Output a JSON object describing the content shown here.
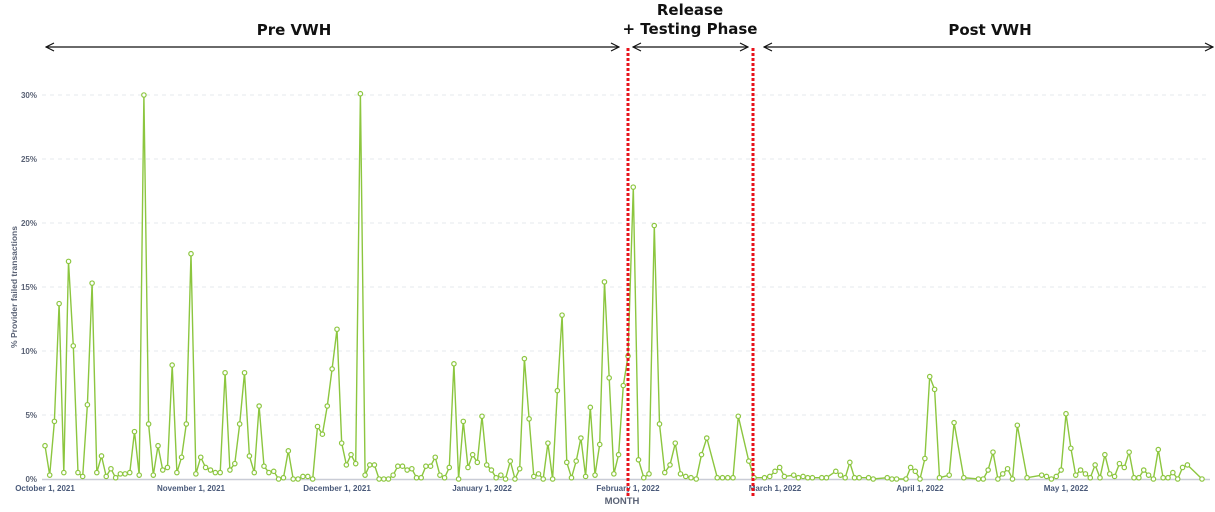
{
  "annotations": {
    "pre": "Pre VWH",
    "release_line1": "Release",
    "release_line2": "+ Testing Phase",
    "post": "Post VWH"
  },
  "chart_data": {
    "type": "line",
    "title": "",
    "xlabel": "MONTH",
    "ylabel": "% Provider failed transactions",
    "ylim": [
      0,
      30
    ],
    "yticks": [
      "0%",
      "5%",
      "10%",
      "15%",
      "20%",
      "25%",
      "30%"
    ],
    "xticks": [
      {
        "date": "2021-10-01",
        "label": "October 1, 2021"
      },
      {
        "date": "2021-11-01",
        "label": "November 1, 2021"
      },
      {
        "date": "2021-12-01",
        "label": "December 1, 2021"
      },
      {
        "date": "2022-01-01",
        "label": "January 1, 2022"
      },
      {
        "date": "2022-02-01",
        "label": "February 1, 2022"
      },
      {
        "date": "2022-03-01",
        "label": "March 1, 2022"
      },
      {
        "date": "2022-04-01",
        "label": "April 1, 2022"
      },
      {
        "date": "2022-05-01",
        "label": "May 1, 2022"
      }
    ],
    "grid": true,
    "line_color": "#8cc63f",
    "phase_line_color": "#e8121b",
    "phase_boundaries": [
      "2022-02-01",
      "2022-02-28"
    ],
    "points": [
      [
        "2021-10-01",
        2.6
      ],
      [
        "2021-10-02",
        0.3
      ],
      [
        "2021-10-03",
        4.5
      ],
      [
        "2021-10-04",
        13.7
      ],
      [
        "2021-10-05",
        0.5
      ],
      [
        "2021-10-06",
        17.0
      ],
      [
        "2021-10-07",
        10.4
      ],
      [
        "2021-10-08",
        0.5
      ],
      [
        "2021-10-09",
        0.2
      ],
      [
        "2021-10-10",
        5.8
      ],
      [
        "2021-10-11",
        15.3
      ],
      [
        "2021-10-12",
        0.5
      ],
      [
        "2021-10-13",
        1.8
      ],
      [
        "2021-10-14",
        0.2
      ],
      [
        "2021-10-15",
        0.8
      ],
      [
        "2021-10-16",
        0.1
      ],
      [
        "2021-10-17",
        0.4
      ],
      [
        "2021-10-18",
        0.4
      ],
      [
        "2021-10-19",
        0.5
      ],
      [
        "2021-10-20",
        3.7
      ],
      [
        "2021-10-21",
        0.3
      ],
      [
        "2021-10-22",
        30.0
      ],
      [
        "2021-10-23",
        4.3
      ],
      [
        "2021-10-24",
        0.3
      ],
      [
        "2021-10-25",
        2.6
      ],
      [
        "2021-10-26",
        0.7
      ],
      [
        "2021-10-27",
        0.9
      ],
      [
        "2021-10-28",
        8.9
      ],
      [
        "2021-10-29",
        0.5
      ],
      [
        "2021-10-30",
        1.7
      ],
      [
        "2021-10-31",
        4.3
      ],
      [
        "2021-11-01",
        17.6
      ],
      [
        "2021-11-02",
        0.4
      ],
      [
        "2021-11-03",
        1.7
      ],
      [
        "2021-11-04",
        0.9
      ],
      [
        "2021-11-05",
        0.7
      ],
      [
        "2021-11-06",
        0.5
      ],
      [
        "2021-11-07",
        0.5
      ],
      [
        "2021-11-08",
        8.3
      ],
      [
        "2021-11-09",
        0.7
      ],
      [
        "2021-11-10",
        1.2
      ],
      [
        "2021-11-11",
        4.3
      ],
      [
        "2021-11-12",
        8.3
      ],
      [
        "2021-11-13",
        1.8
      ],
      [
        "2021-11-14",
        0.5
      ],
      [
        "2021-11-15",
        5.7
      ],
      [
        "2021-11-16",
        1.0
      ],
      [
        "2021-11-17",
        0.5
      ],
      [
        "2021-11-18",
        0.6
      ],
      [
        "2021-11-19",
        0.0
      ],
      [
        "2021-11-20",
        0.1
      ],
      [
        "2021-11-21",
        2.2
      ],
      [
        "2021-11-22",
        0.0
      ],
      [
        "2021-11-23",
        0.0
      ],
      [
        "2021-11-24",
        0.2
      ],
      [
        "2021-11-25",
        0.2
      ],
      [
        "2021-11-26",
        0.0
      ],
      [
        "2021-11-27",
        4.1
      ],
      [
        "2021-11-28",
        3.5
      ],
      [
        "2021-11-29",
        5.7
      ],
      [
        "2021-11-30",
        8.6
      ],
      [
        "2021-12-01",
        11.7
      ],
      [
        "2021-12-02",
        2.8
      ],
      [
        "2021-12-03",
        1.1
      ],
      [
        "2021-12-04",
        1.9
      ],
      [
        "2021-12-05",
        1.2
      ],
      [
        "2021-12-06",
        30.1
      ],
      [
        "2021-12-07",
        0.3
      ],
      [
        "2021-12-08",
        1.1
      ],
      [
        "2021-12-09",
        1.1
      ],
      [
        "2021-12-10",
        0.0
      ],
      [
        "2021-12-11",
        0.0
      ],
      [
        "2021-12-12",
        0.0
      ],
      [
        "2021-12-13",
        0.3
      ],
      [
        "2021-12-14",
        1.0
      ],
      [
        "2021-12-15",
        1.0
      ],
      [
        "2021-12-16",
        0.7
      ],
      [
        "2021-12-17",
        0.8
      ],
      [
        "2021-12-18",
        0.1
      ],
      [
        "2021-12-19",
        0.1
      ],
      [
        "2021-12-20",
        1.0
      ],
      [
        "2021-12-21",
        1.0
      ],
      [
        "2021-12-22",
        1.7
      ],
      [
        "2021-12-23",
        0.3
      ],
      [
        "2021-12-24",
        0.1
      ],
      [
        "2021-12-25",
        0.9
      ],
      [
        "2021-12-26",
        9.0
      ],
      [
        "2021-12-27",
        0.0
      ],
      [
        "2021-12-28",
        4.5
      ],
      [
        "2021-12-29",
        0.9
      ],
      [
        "2021-12-30",
        1.9
      ],
      [
        "2021-12-31",
        1.3
      ],
      [
        "2022-01-01",
        4.9
      ],
      [
        "2022-01-02",
        1.1
      ],
      [
        "2022-01-03",
        0.7
      ],
      [
        "2022-01-04",
        0.1
      ],
      [
        "2022-01-05",
        0.3
      ],
      [
        "2022-01-06",
        0.0
      ],
      [
        "2022-01-07",
        1.4
      ],
      [
        "2022-01-08",
        0.0
      ],
      [
        "2022-01-09",
        0.8
      ],
      [
        "2022-01-10",
        9.4
      ],
      [
        "2022-01-11",
        4.7
      ],
      [
        "2022-01-12",
        0.2
      ],
      [
        "2022-01-13",
        0.4
      ],
      [
        "2022-01-14",
        0.0
      ],
      [
        "2022-01-15",
        2.8
      ],
      [
        "2022-01-16",
        0.0
      ],
      [
        "2022-01-17",
        6.9
      ],
      [
        "2022-01-18",
        12.8
      ],
      [
        "2022-01-19",
        1.3
      ],
      [
        "2022-01-20",
        0.1
      ],
      [
        "2022-01-21",
        1.4
      ],
      [
        "2022-01-22",
        3.2
      ],
      [
        "2022-01-23",
        0.2
      ],
      [
        "2022-01-24",
        5.6
      ],
      [
        "2022-01-25",
        0.3
      ],
      [
        "2022-01-26",
        2.7
      ],
      [
        "2022-01-27",
        15.4
      ],
      [
        "2022-01-28",
        7.9
      ],
      [
        "2022-01-29",
        0.4
      ],
      [
        "2022-01-30",
        1.9
      ],
      [
        "2022-01-31",
        7.3
      ],
      [
        "2022-02-01",
        9.6
      ],
      [
        "2022-02-02",
        22.8
      ],
      [
        "2022-02-03",
        1.5
      ],
      [
        "2022-02-04",
        0.1
      ],
      [
        "2022-02-05",
        0.4
      ],
      [
        "2022-02-06",
        19.8
      ],
      [
        "2022-02-07",
        4.3
      ],
      [
        "2022-02-08",
        0.5
      ],
      [
        "2022-02-09",
        1.1
      ],
      [
        "2022-02-10",
        2.8
      ],
      [
        "2022-02-11",
        0.4
      ],
      [
        "2022-02-12",
        0.2
      ],
      [
        "2022-02-13",
        0.1
      ],
      [
        "2022-02-14",
        0.0
      ],
      [
        "2022-02-15",
        1.9
      ],
      [
        "2022-02-16",
        3.2
      ],
      [
        "2022-02-18",
        0.1
      ],
      [
        "2022-02-19",
        0.1
      ],
      [
        "2022-02-20",
        0.1
      ],
      [
        "2022-02-21",
        0.1
      ],
      [
        "2022-02-22",
        4.9
      ],
      [
        "2022-02-24",
        1.4
      ],
      [
        "2022-02-25",
        0.1
      ],
      [
        "2022-02-27",
        0.1
      ],
      [
        "2022-02-28",
        0.2
      ],
      [
        "2022-03-01",
        0.6
      ],
      [
        "2022-03-02",
        0.9
      ],
      [
        "2022-03-03",
        0.2
      ],
      [
        "2022-03-05",
        0.3
      ],
      [
        "2022-03-06",
        0.1
      ],
      [
        "2022-03-07",
        0.2
      ],
      [
        "2022-03-08",
        0.1
      ],
      [
        "2022-03-09",
        0.1
      ],
      [
        "2022-03-11",
        0.1
      ],
      [
        "2022-03-12",
        0.1
      ],
      [
        "2022-03-14",
        0.6
      ],
      [
        "2022-03-15",
        0.3
      ],
      [
        "2022-03-16",
        0.1
      ],
      [
        "2022-03-17",
        1.3
      ],
      [
        "2022-03-18",
        0.1
      ],
      [
        "2022-03-19",
        0.1
      ],
      [
        "2022-03-21",
        0.1
      ],
      [
        "2022-03-22",
        0.0
      ],
      [
        "2022-03-25",
        0.1
      ],
      [
        "2022-03-26",
        0.0
      ],
      [
        "2022-03-27",
        0.0
      ],
      [
        "2022-03-29",
        0.0
      ],
      [
        "2022-03-30",
        0.9
      ],
      [
        "2022-03-31",
        0.6
      ],
      [
        "2022-04-01",
        0.0
      ],
      [
        "2022-04-02",
        1.6
      ],
      [
        "2022-04-03",
        8.0
      ],
      [
        "2022-04-04",
        7.0
      ],
      [
        "2022-04-05",
        0.1
      ],
      [
        "2022-04-07",
        0.3
      ],
      [
        "2022-04-08",
        4.4
      ],
      [
        "2022-04-10",
        0.1
      ],
      [
        "2022-04-13",
        0.0
      ],
      [
        "2022-04-14",
        0.0
      ],
      [
        "2022-04-15",
        0.7
      ],
      [
        "2022-04-16",
        2.1
      ],
      [
        "2022-04-17",
        0.0
      ],
      [
        "2022-04-18",
        0.4
      ],
      [
        "2022-04-19",
        0.8
      ],
      [
        "2022-04-20",
        0.0
      ],
      [
        "2022-04-21",
        4.2
      ],
      [
        "2022-04-23",
        0.1
      ],
      [
        "2022-04-26",
        0.3
      ],
      [
        "2022-04-27",
        0.2
      ],
      [
        "2022-04-28",
        0.0
      ],
      [
        "2022-04-29",
        0.2
      ],
      [
        "2022-04-30",
        0.7
      ],
      [
        "2022-05-01",
        5.1
      ],
      [
        "2022-05-02",
        2.4
      ],
      [
        "2022-05-03",
        0.3
      ],
      [
        "2022-05-04",
        0.7
      ],
      [
        "2022-05-05",
        0.4
      ],
      [
        "2022-05-06",
        0.1
      ],
      [
        "2022-05-07",
        1.1
      ],
      [
        "2022-05-08",
        0.1
      ],
      [
        "2022-05-09",
        1.9
      ],
      [
        "2022-05-10",
        0.4
      ],
      [
        "2022-05-11",
        0.2
      ],
      [
        "2022-05-12",
        1.2
      ],
      [
        "2022-05-13",
        0.9
      ],
      [
        "2022-05-14",
        2.1
      ],
      [
        "2022-05-15",
        0.1
      ],
      [
        "2022-05-16",
        0.1
      ],
      [
        "2022-05-17",
        0.7
      ],
      [
        "2022-05-18",
        0.3
      ],
      [
        "2022-05-19",
        0.0
      ],
      [
        "2022-05-20",
        2.3
      ],
      [
        "2022-05-21",
        0.1
      ],
      [
        "2022-05-22",
        0.1
      ],
      [
        "2022-05-23",
        0.5
      ],
      [
        "2022-05-24",
        0.0
      ],
      [
        "2022-05-25",
        0.9
      ],
      [
        "2022-05-26",
        1.1
      ],
      [
        "2022-05-29",
        0.0
      ]
    ]
  }
}
